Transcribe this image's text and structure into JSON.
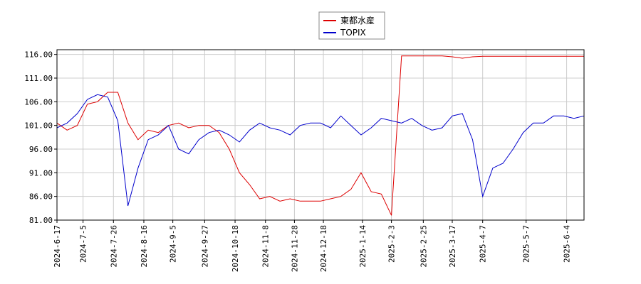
{
  "chart_data": {
    "type": "line",
    "x": [
      "2024-6-17",
      "2024-6-24",
      "2024-7-1",
      "2024-7-8",
      "2024-7-15",
      "2024-7-22",
      "2024-7-29",
      "2024-8-5",
      "2024-8-12",
      "2024-8-19",
      "2024-8-26",
      "2024-9-2",
      "2024-9-9",
      "2024-9-16",
      "2024-9-23",
      "2024-9-30",
      "2024-10-7",
      "2024-10-14",
      "2024-10-21",
      "2024-10-28",
      "2024-11-4",
      "2024-11-11",
      "2024-11-18",
      "2024-11-25",
      "2024-12-2",
      "2024-12-9",
      "2024-12-16",
      "2024-12-23",
      "2024-12-30",
      "2025-1-6",
      "2025-1-13",
      "2025-1-20",
      "2025-1-27",
      "2025-2-3",
      "2025-2-10",
      "2025-2-17",
      "2025-2-24",
      "2025-3-3",
      "2025-3-10",
      "2025-3-17",
      "2025-3-24",
      "2025-3-31",
      "2025-4-7",
      "2025-4-14",
      "2025-4-21",
      "2025-4-28",
      "2025-5-5",
      "2025-5-12",
      "2025-5-19",
      "2025-5-26",
      "2025-6-2",
      "2025-6-9",
      "2025-6-16"
    ],
    "series": [
      {
        "name": "東都水産",
        "color": "#dd0000",
        "values": [
          101.5,
          100,
          101,
          105.5,
          106,
          108,
          108,
          101.5,
          98,
          100,
          99.5,
          101,
          101.5,
          100.5,
          101,
          101,
          99.5,
          96,
          91,
          88.5,
          85.5,
          86,
          85,
          85.5,
          85,
          85,
          85,
          85.5,
          86,
          87.5,
          91,
          87,
          86.5,
          82,
          115.7,
          115.7,
          115.7,
          115.7,
          115.7,
          115.5,
          115.2,
          115.5,
          115.6,
          115.6,
          115.6,
          115.6,
          115.6,
          115.6,
          115.6,
          115.6,
          115.6,
          115.6,
          115.6
        ]
      },
      {
        "name": "TOPIX",
        "color": "#0000cc",
        "values": [
          100.5,
          101.5,
          103.5,
          106.5,
          107.5,
          107,
          102,
          84,
          92,
          98,
          99,
          101,
          96,
          95,
          98,
          99.5,
          100,
          99,
          97.5,
          100,
          101.5,
          100.5,
          100,
          99,
          101,
          101.5,
          101.5,
          100.5,
          103,
          101,
          99,
          100.5,
          102.5,
          102,
          101.5,
          102.5,
          101,
          100,
          100.5,
          103,
          103.5,
          98,
          86,
          92,
          93,
          96,
          99.5,
          101.5,
          101.5,
          103,
          103,
          102.5,
          103
        ]
      }
    ],
    "xlim": [
      "2024-6-17",
      "2025-6-16"
    ],
    "xticks": [
      "2024-6-17",
      "2024-7-5",
      "2024-7-26",
      "2024-8-16",
      "2024-9-5",
      "2024-9-27",
      "2024-10-18",
      "2024-11-8",
      "2024-11-28",
      "2024-12-18",
      "2025-1-14",
      "2025-2-3",
      "2025-2-25",
      "2025-3-17",
      "2025-4-7",
      "2025-5-7",
      "2025-6-4"
    ],
    "ylim": [
      81,
      117
    ],
    "yticks": [
      {
        "value": 81,
        "label": "81.00"
      },
      {
        "value": 86,
        "label": "86.00"
      },
      {
        "value": 91,
        "label": "91.00"
      },
      {
        "value": 96,
        "label": "96.00"
      },
      {
        "value": 101,
        "label": "101.00"
      },
      {
        "value": 106,
        "label": "106.00"
      },
      {
        "value": 111,
        "label": "111.00"
      },
      {
        "value": 116,
        "label": "116.00"
      }
    ],
    "grid": true
  }
}
